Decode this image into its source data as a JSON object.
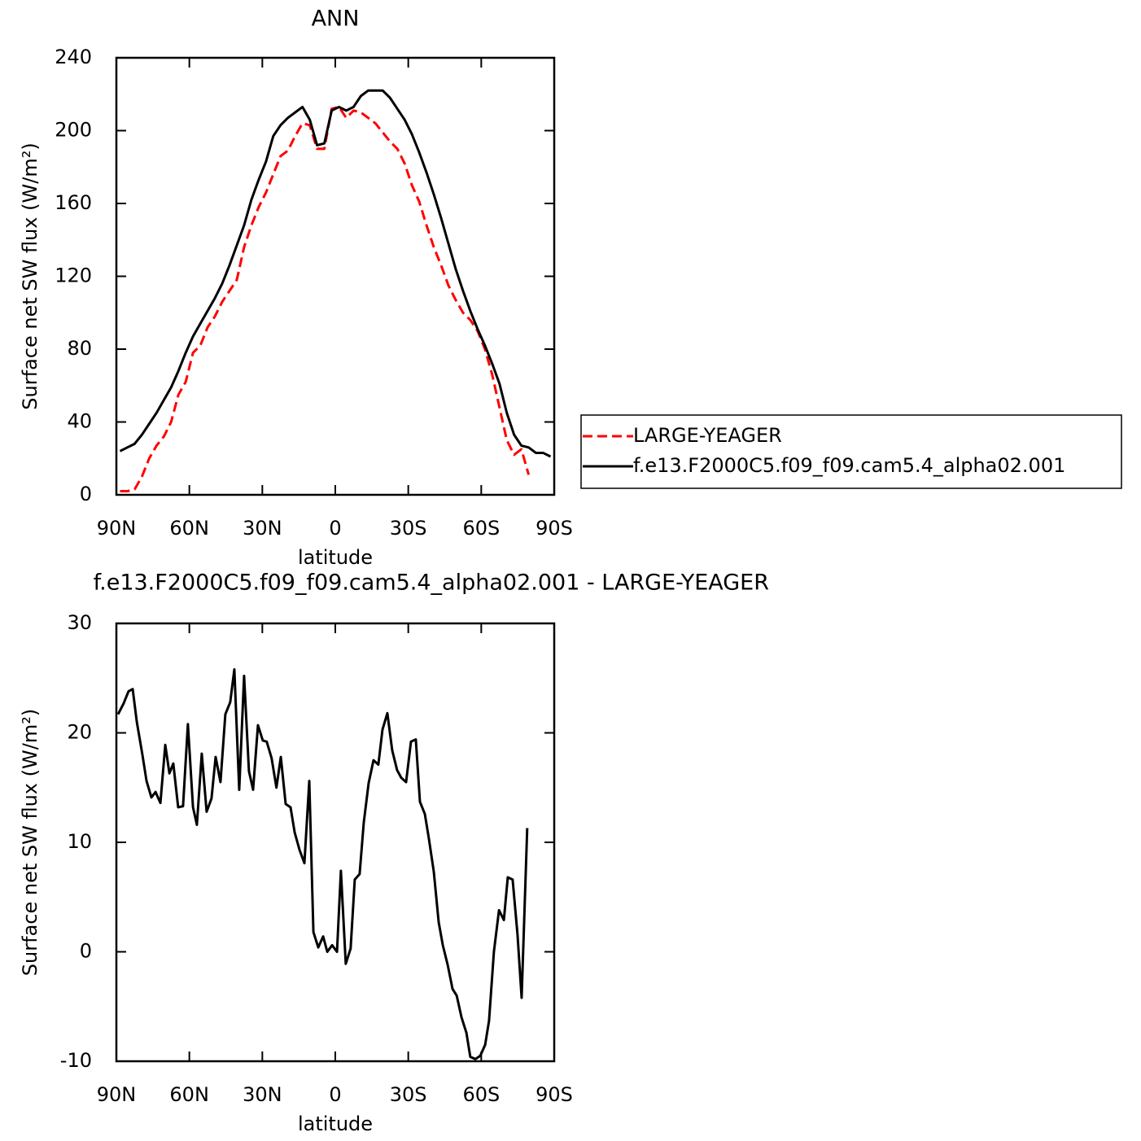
{
  "chart_data": [
    {
      "type": "line",
      "title": "ANN",
      "x_label": "latitude",
      "y_label": "Surface net SW flux (W/m²)",
      "xlim": [
        90,
        -90
      ],
      "xticks": [
        {
          "value": 90,
          "label": "90N"
        },
        {
          "value": 60,
          "label": "60N"
        },
        {
          "value": 30,
          "label": "30N"
        },
        0,
        {
          "value": -30,
          "label": "30S"
        },
        {
          "value": -60,
          "label": "60S"
        },
        {
          "value": -90,
          "label": "90S"
        }
      ],
      "ylim": [
        0,
        240
      ],
      "yticks": [
        0,
        40,
        80,
        120,
        160,
        200,
        240
      ],
      "legend": "right",
      "x": [
        88.5,
        85.5,
        82.5,
        79.5,
        76.5,
        73.5,
        70.5,
        67.5,
        64.5,
        61.5,
        58.5,
        55.5,
        52.5,
        49.5,
        46.5,
        43.5,
        40.5,
        37.5,
        34.5,
        31.5,
        28.5,
        25.5,
        22.5,
        19.5,
        16.5,
        13.5,
        10.5,
        7.5,
        4.5,
        1.5,
        -1.5,
        -4.5,
        -7.5,
        -10.5,
        -13.5,
        -16.5,
        -19.5,
        -22.5,
        -25.5,
        -28.5,
        -31.5,
        -34.5,
        -37.5,
        -40.5,
        -43.5,
        -46.5,
        -49.5,
        -52.5,
        -55.5,
        -58.5,
        -61.5,
        -64.5,
        -67.5,
        -70.5,
        -73.5,
        -76.5,
        -79.5,
        -82.5,
        -85.5,
        -88.5
      ],
      "series": [
        {
          "name": "LARGE-YEAGER",
          "color": "#ff0000",
          "dashed": true,
          "values": [
            2,
            2,
            3,
            10,
            20,
            27,
            32,
            40,
            55,
            62,
            78,
            82,
            92,
            98,
            106,
            112,
            118,
            136,
            148,
            158,
            166,
            176,
            186,
            189,
            197,
            204,
            203,
            190,
            190,
            212,
            213,
            207,
            211,
            210,
            207,
            204,
            199,
            194,
            190,
            182,
            170,
            161,
            148,
            136,
            126,
            115,
            107,
            100,
            96,
            90,
            80,
            66,
            48,
            30,
            22,
            25,
            11,
            null,
            null,
            null
          ]
        },
        {
          "name": "f.e13.F2000C5.f09_f09.cam5.4_alpha02.001",
          "color": "#000000",
          "dashed": false,
          "values": [
            24,
            26,
            28,
            33,
            39,
            45,
            52,
            59,
            68,
            78,
            87,
            94,
            101,
            108,
            116,
            126,
            137,
            148,
            162,
            173,
            183,
            197,
            203,
            207,
            210,
            213,
            206,
            192,
            193,
            211,
            213,
            211,
            213,
            219,
            222,
            222,
            222,
            218,
            212,
            206,
            198,
            188,
            177,
            165,
            152,
            138,
            124,
            112,
            101,
            91,
            82,
            72,
            61,
            45,
            33,
            27,
            26,
            23,
            23,
            21
          ]
        }
      ]
    },
    {
      "type": "line",
      "title": "f.e13.F2000C5.f09_f09.cam5.4_alpha02.001 - LARGE-YEAGER",
      "x_label": "latitude",
      "y_label": "Surface net SW flux (W/m²)",
      "xlim": [
        90,
        -90
      ],
      "xticks": [
        {
          "value": 90,
          "label": "90N"
        },
        {
          "value": 60,
          "label": "60N"
        },
        {
          "value": 30,
          "label": "30N"
        },
        0,
        {
          "value": -30,
          "label": "30S"
        },
        {
          "value": -60,
          "label": "60S"
        },
        {
          "value": -90,
          "label": "90S"
        }
      ],
      "ylim": [
        -10,
        30
      ],
      "yticks": [
        -10,
        0,
        10,
        20,
        30
      ],
      "x": [
        89.3,
        87.0,
        85.0,
        83.3,
        81.6,
        79.3,
        77.6,
        75.6,
        73.9,
        71.9,
        69.9,
        68.2,
        66.6,
        64.6,
        62.6,
        60.6,
        58.5,
        56.9,
        54.9,
        52.9,
        50.9,
        49.2,
        47.2,
        45.2,
        43.2,
        41.5,
        39.5,
        37.5,
        35.5,
        33.8,
        31.8,
        29.8,
        28.2,
        26.2,
        24.2,
        22.4,
        20.4,
        18.4,
        16.7,
        14.7,
        12.7,
        10.7,
        9.0,
        7.0,
        5.0,
        3.3,
        1.3,
        -0.7,
        -2.3,
        -4.3,
        -6.3,
        -8.0,
        -10.0,
        -11.7,
        -13.7,
        -15.7,
        -17.7,
        -19.4,
        -21.4,
        -23.4,
        -25.4,
        -27.1,
        -29.1,
        -31.1,
        -33.1,
        -34.8,
        -36.8,
        -38.5,
        -40.5,
        -42.5,
        -44.2,
        -46.2,
        -48.2,
        -49.9,
        -51.9,
        -53.9,
        -55.5,
        -57.6,
        -59.6,
        -61.6,
        -63.2,
        -65.2,
        -67.3,
        -69.3,
        -70.9,
        -72.9,
        -74.9,
        -76.6,
        -78.9
      ],
      "series": [
        {
          "color": "#000000",
          "dashed": false,
          "values": [
            21.7,
            22.7,
            23.8,
            24,
            21,
            18,
            15.6,
            14.1,
            14.6,
            13.6,
            18.9,
            16.3,
            17.2,
            13.2,
            13.3,
            20.8,
            13.2,
            11.6,
            18.1,
            12.8,
            14,
            17.8,
            15.5,
            21.7,
            22.8,
            25.8,
            14.8,
            25.2,
            16.5,
            14.8,
            20.7,
            19.3,
            19.2,
            17.7,
            15,
            17.8,
            13.5,
            13.2,
            10.9,
            9.3,
            8.1,
            15.6,
            1.8,
            0.4,
            1.4,
            0,
            0.6,
            0,
            7.4,
            -1.1,
            0.3,
            6.6,
            7.1,
            11.8,
            15.4,
            17.5,
            17.1,
            20.3,
            21.8,
            18.4,
            16.6,
            15.9,
            15.5,
            19.2,
            19.4,
            13.7,
            12.6,
            10.3,
            7.3,
            2.7,
            0.6,
            -1.2,
            -3.4,
            -4,
            -6,
            -7.4,
            -9.6,
            -9.8,
            -9.5,
            -8.5,
            -6.3,
            0,
            3.8,
            2.9,
            6.8,
            6.6,
            1.6,
            -4.2,
            11.3
          ]
        }
      ]
    }
  ]
}
